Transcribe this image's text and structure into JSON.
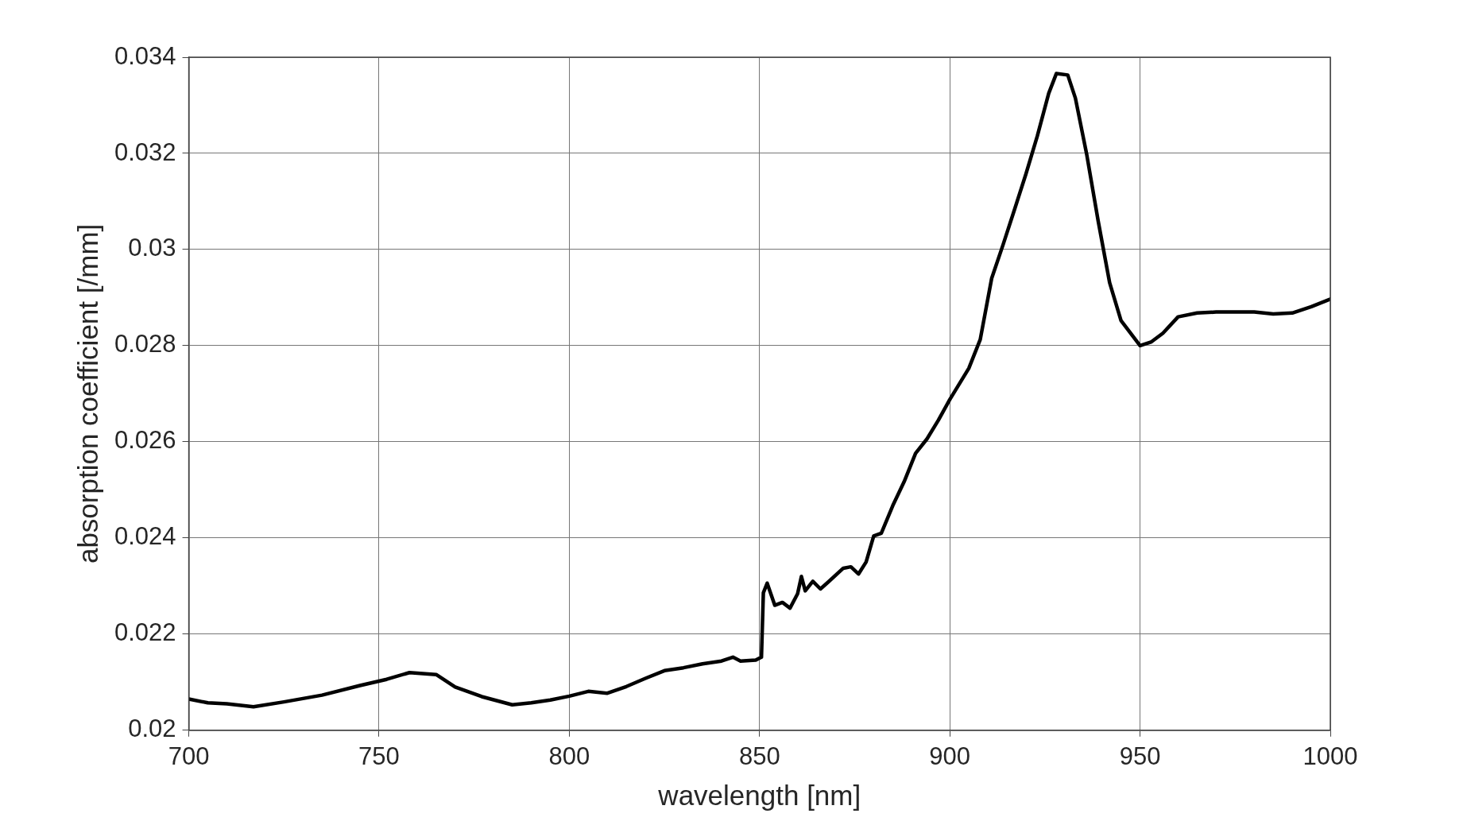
{
  "chart_data": {
    "type": "line",
    "xlabel": "wavelength [nm]",
    "ylabel": "absorption coefficient [/mm]",
    "xlim": [
      700,
      1000
    ],
    "xticks": [
      700,
      750,
      800,
      850,
      900,
      950,
      1000
    ],
    "ylim": [
      0.02,
      0.034
    ],
    "yticks": [
      0.02,
      0.022,
      0.024,
      0.026,
      0.028,
      0.03,
      0.032,
      0.034
    ],
    "grid": true,
    "legend": false,
    "marker": "none",
    "line_style": "solid",
    "series": [
      {
        "color": "#000000",
        "x": [
          700,
          705,
          710,
          717,
          725,
          735,
          745,
          752,
          758,
          765,
          770,
          777,
          785,
          790,
          795,
          800,
          805,
          810,
          815,
          820,
          825,
          830,
          835,
          840,
          843,
          845,
          849,
          850.5,
          851,
          852,
          854,
          856,
          858,
          860,
          861,
          862,
          864,
          866,
          868,
          872,
          874,
          876,
          878,
          880,
          882,
          885,
          888,
          891,
          894,
          897,
          900,
          905,
          908,
          911,
          914,
          917,
          920,
          923,
          926,
          928,
          931,
          933,
          936,
          939,
          942,
          945,
          950,
          953,
          956,
          960,
          965,
          970,
          975,
          980,
          985,
          990,
          995,
          1000
        ],
        "values": [
          0.02065,
          0.02057,
          0.02055,
          0.02049,
          0.02059,
          0.02073,
          0.02093,
          0.02106,
          0.0212,
          0.02116,
          0.0209,
          0.0207,
          0.02053,
          0.02057,
          0.02063,
          0.02071,
          0.02081,
          0.02077,
          0.02091,
          0.02108,
          0.02124,
          0.0213,
          0.02138,
          0.02144,
          0.02152,
          0.02144,
          0.02146,
          0.02152,
          0.02286,
          0.02306,
          0.0226,
          0.02266,
          0.02254,
          0.02284,
          0.0232,
          0.0229,
          0.0231,
          0.02294,
          0.02308,
          0.02337,
          0.0234,
          0.02325,
          0.0235,
          0.02404,
          0.0241,
          0.02467,
          0.02517,
          0.02576,
          0.02606,
          0.02645,
          0.02688,
          0.02753,
          0.02813,
          0.0294,
          0.0301,
          0.03083,
          0.03157,
          0.03236,
          0.03325,
          0.03366,
          0.03363,
          0.03315,
          0.03197,
          0.03059,
          0.02931,
          0.02852,
          0.028,
          0.02808,
          0.02826,
          0.0286,
          0.02868,
          0.0287,
          0.0287,
          0.0287,
          0.02866,
          0.02868,
          0.02881,
          0.02897
        ]
      }
    ]
  }
}
